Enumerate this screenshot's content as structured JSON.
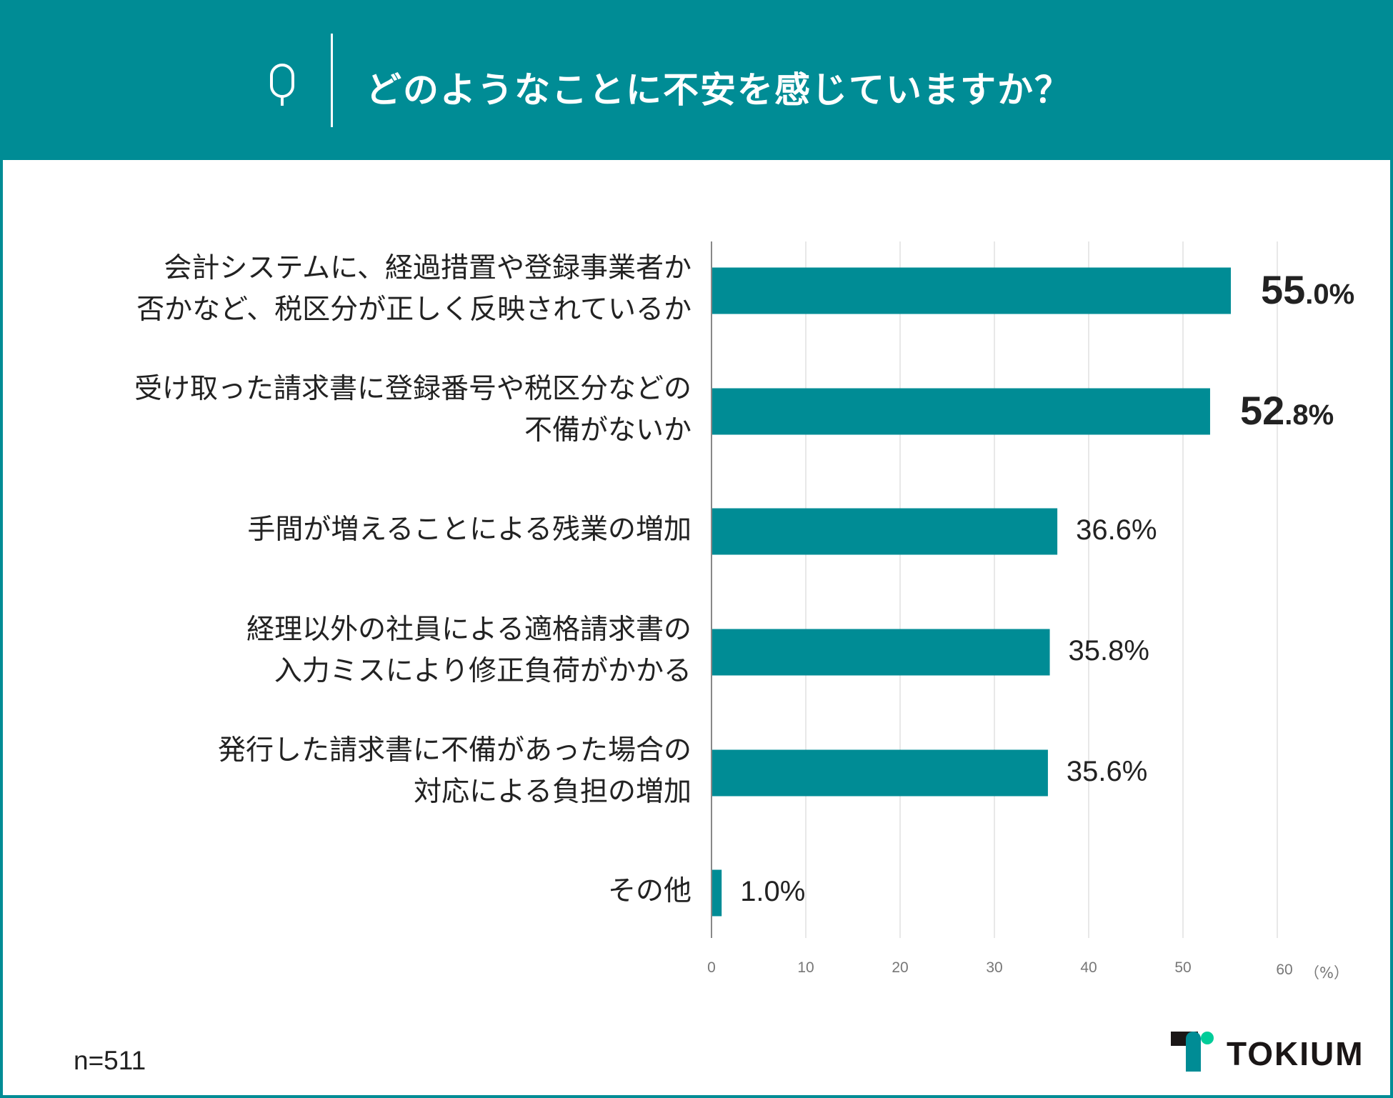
{
  "header": {
    "q_label": "Q",
    "title": "どのようなことに不安を感じていますか？"
  },
  "colors": {
    "accent": "#008C95",
    "logo_green": "#00CC99",
    "text": "#222222"
  },
  "chart_data": {
    "type": "bar",
    "orientation": "horizontal",
    "title": "どのようなことに不安を感じていますか？",
    "categories": [
      [
        "会計システムに、経過措置や登録事業者か",
        "否かなど、税区分が正しく反映されているか"
      ],
      [
        "受け取った請求書に登録番号や税区分などの",
        "不備がないか"
      ],
      [
        "手間が増えることによる残業の増加"
      ],
      [
        "経理以外の社員による適格請求書の",
        "入力ミスにより修正負荷がかかる"
      ],
      [
        "発行した請求書に不備があった場合の",
        "対応による負担の増加"
      ],
      [
        "その他"
      ]
    ],
    "values": [
      55.0,
      52.8,
      36.6,
      35.8,
      35.6,
      1.0
    ],
    "labels": [
      "55.0%",
      "52.8%",
      "36.6%",
      "35.8%",
      "35.6%",
      "1.0%"
    ],
    "emphasized": [
      true,
      true,
      false,
      false,
      false,
      false
    ],
    "xlim": [
      0,
      60
    ],
    "xticks": [
      "0",
      "10",
      "20",
      "30",
      "40",
      "50",
      "60"
    ],
    "xlabel": "（%）",
    "grid": true
  },
  "footer": {
    "sample_size": "n=511",
    "brand": "TOKIUM"
  }
}
